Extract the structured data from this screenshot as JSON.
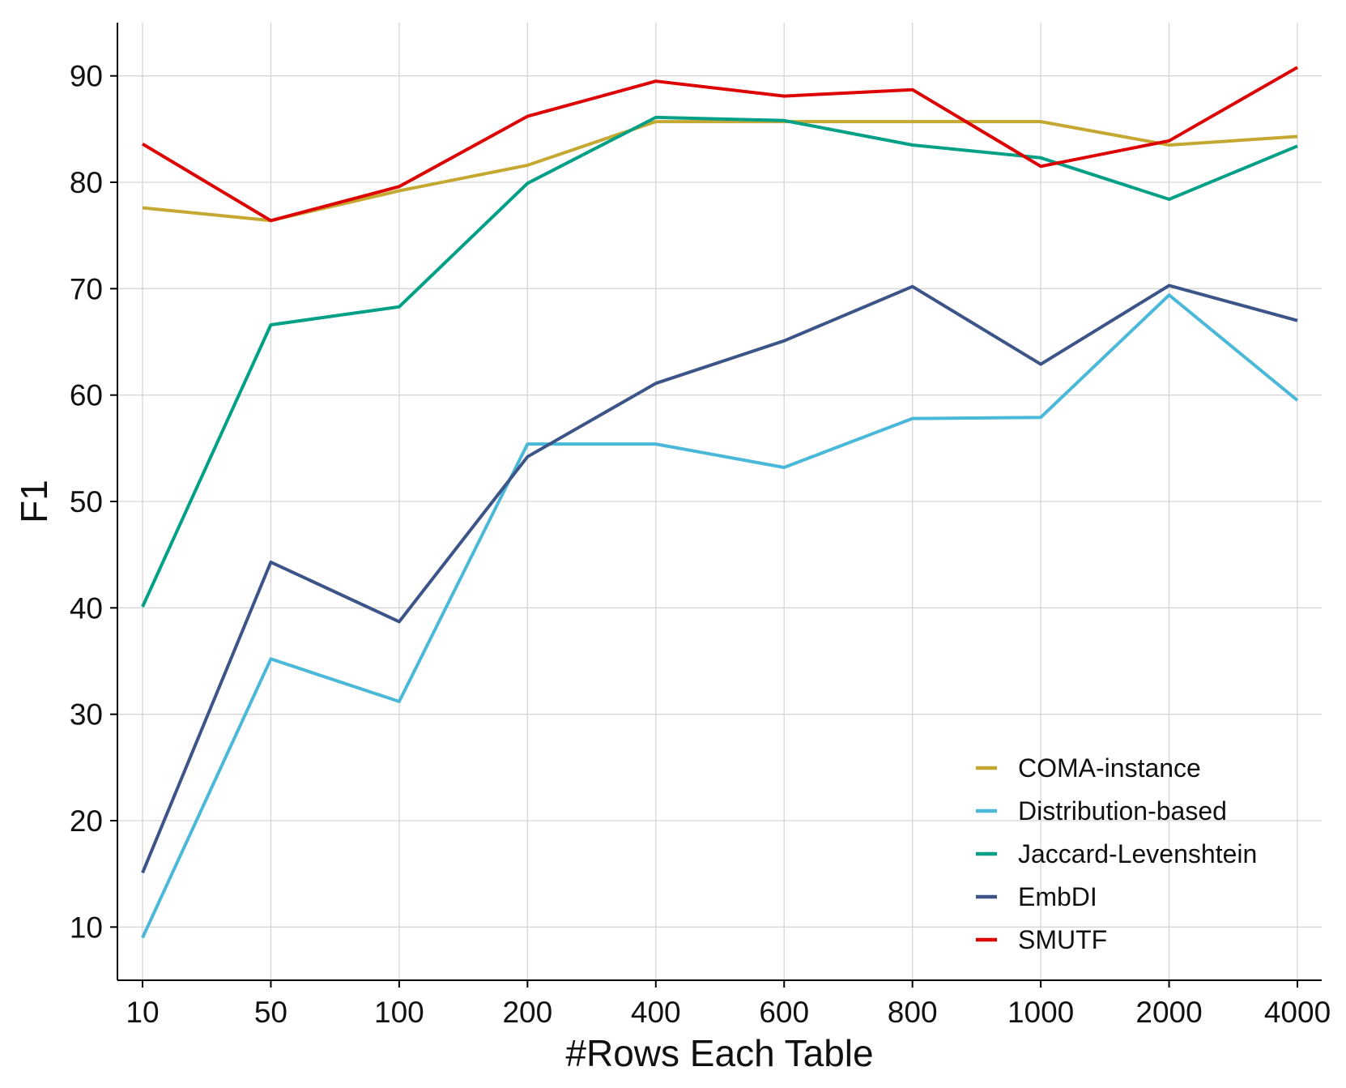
{
  "chart_data": {
    "type": "line",
    "title": "",
    "xlabel": "#Rows Each Table",
    "ylabel": "F1",
    "categories": [
      "10",
      "50",
      "100",
      "200",
      "400",
      "600",
      "800",
      "1000",
      "2000",
      "4000"
    ],
    "ylim": [
      5,
      95
    ],
    "yticks": [
      10,
      20,
      30,
      40,
      50,
      60,
      70,
      80,
      90
    ],
    "grid": true,
    "legend_position": "bottom-right",
    "series": [
      {
        "name": "COMA-instance",
        "color": "#c4a832",
        "values": [
          77.6,
          76.4,
          79.2,
          81.6,
          85.7,
          85.7,
          85.7,
          85.7,
          83.5,
          84.3
        ]
      },
      {
        "name": "Distribution-based",
        "color": "#4ab8d8",
        "values": [
          9.0,
          35.2,
          31.2,
          55.4,
          55.4,
          53.2,
          57.8,
          57.9,
          69.4,
          59.5
        ]
      },
      {
        "name": "Jaccard-Levenshtein",
        "color": "#00a087",
        "values": [
          40.1,
          66.6,
          68.3,
          79.9,
          86.1,
          85.8,
          83.5,
          82.3,
          78.4,
          83.4
        ]
      },
      {
        "name": "EmbDI",
        "color": "#3c5488",
        "values": [
          15.1,
          44.3,
          38.7,
          54.2,
          61.1,
          65.1,
          70.2,
          62.9,
          70.3,
          67.0
        ]
      },
      {
        "name": "SMUTF",
        "color": "#dc0000",
        "values": [
          83.6,
          76.4,
          79.6,
          86.2,
          89.5,
          88.1,
          88.7,
          81.5,
          83.9,
          90.8
        ]
      }
    ]
  }
}
